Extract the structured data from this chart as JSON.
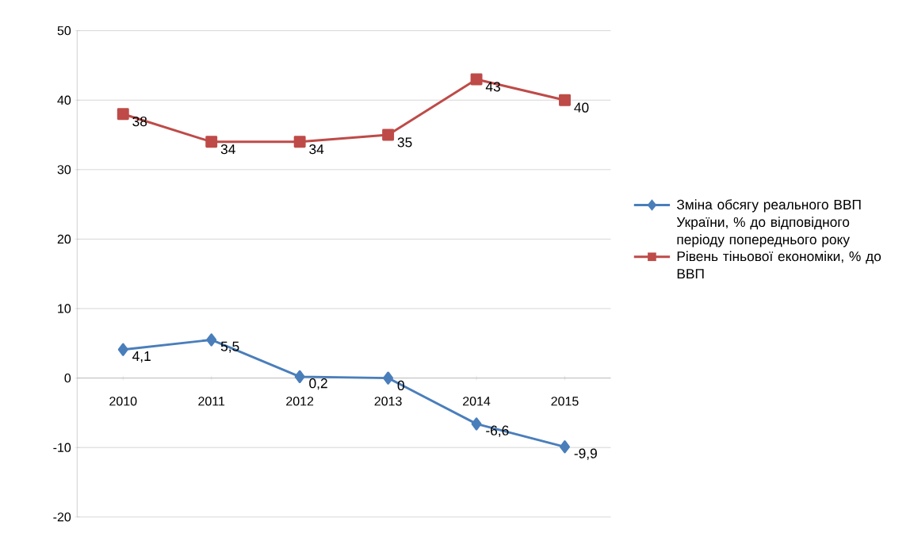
{
  "chart_data": {
    "type": "line",
    "categories": [
      "2010",
      "2011",
      "2012",
      "2013",
      "2014",
      "2015"
    ],
    "series": [
      {
        "name": "Зміна обсягу реального ВВП України, % до відповідного періоду попереднього року",
        "color": "#4a7ebb",
        "marker": "diamond",
        "values": [
          4.1,
          5.5,
          0.2,
          0,
          -6.6,
          -9.9
        ],
        "value_labels": [
          "4,1",
          "5,5",
          "0,2",
          "0",
          "-6,6",
          "-9,9"
        ]
      },
      {
        "name": "Рівень тіньової економіки, % до ВВП",
        "color": "#be4b48",
        "marker": "square",
        "values": [
          38,
          34,
          34,
          35,
          43,
          40
        ],
        "value_labels": [
          "38",
          "34",
          "34",
          "35",
          "43",
          "40"
        ]
      }
    ],
    "ylim": [
      -20,
      50
    ],
    "yticks": [
      -20,
      -10,
      0,
      10,
      20,
      30,
      40,
      50
    ],
    "grid": "y",
    "legend": "right",
    "line_style": "solid"
  }
}
